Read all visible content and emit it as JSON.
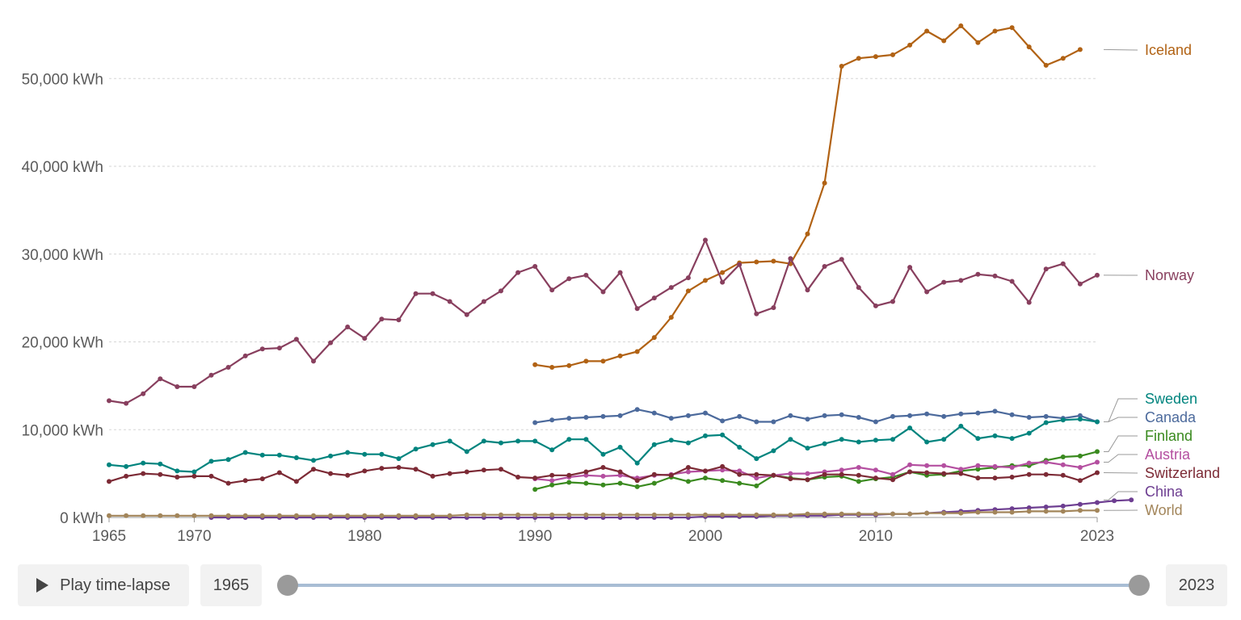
{
  "chart_data": {
    "type": "line",
    "ylim": [
      0,
      57000
    ],
    "yticks": [
      0,
      10000,
      20000,
      30000,
      40000,
      50000
    ],
    "ytick_labels": [
      "0 kWh",
      "10,000 kWh",
      "20,000 kWh",
      "30,000 kWh",
      "40,000 kWh",
      "50,000 kWh"
    ],
    "xlim": [
      1965,
      2023
    ],
    "xticks": [
      1965,
      1970,
      1980,
      1990,
      2000,
      2010,
      2023
    ],
    "xtick_labels": [
      "1965",
      "1970",
      "1980",
      "1990",
      "2000",
      "2010",
      "2023"
    ],
    "grid": true,
    "series": [
      {
        "name": "Iceland",
        "color": "#b16214",
        "start": 1990,
        "values": [
          17400,
          17100,
          17300,
          17800,
          17800,
          18400,
          18900,
          20500,
          22800,
          25800,
          27000,
          27900,
          29000,
          29100,
          29200,
          28900,
          32300,
          38100,
          51400,
          52300,
          52500,
          52700,
          53800,
          55400,
          54300,
          56000,
          54100,
          55400,
          55800,
          53600,
          51500,
          52300,
          53300
        ]
      },
      {
        "name": "Norway",
        "color": "#883f5e",
        "start": 1965,
        "values": [
          13300,
          13000,
          14100,
          15800,
          14900,
          14900,
          16200,
          17100,
          18400,
          19200,
          19300,
          20300,
          17800,
          19900,
          21700,
          20400,
          22600,
          22500,
          25500,
          25500,
          24600,
          23100,
          24600,
          25800,
          27900,
          28600,
          25900,
          27200,
          27600,
          25700,
          27900,
          23800,
          25000,
          26200,
          27300,
          31600,
          26800,
          28800,
          23200,
          23900,
          29500,
          25900,
          28600,
          29400,
          26200,
          24100,
          24600,
          28500,
          25700,
          26800,
          27000,
          27700,
          27500,
          26900,
          24500,
          28300,
          28900,
          26600,
          27600
        ]
      },
      {
        "name": "Canada",
        "color": "#4c6a9c",
        "start": 1990,
        "values": [
          10800,
          11100,
          11300,
          11400,
          11500,
          11600,
          12300,
          11900,
          11300,
          11600,
          11900,
          11000,
          11500,
          10900,
          10900,
          11600,
          11200,
          11600,
          11700,
          11400,
          10900,
          11500,
          11600,
          11800,
          11500,
          11800,
          11900,
          12100,
          11700,
          11400,
          11500,
          11300,
          11600,
          10900
        ]
      },
      {
        "name": "Sweden",
        "color": "#00847e",
        "start": 1965,
        "values": [
          6000,
          5800,
          6200,
          6100,
          5300,
          5200,
          6400,
          6600,
          7400,
          7100,
          7100,
          6800,
          6500,
          7000,
          7400,
          7200,
          7200,
          6700,
          7800,
          8300,
          8700,
          7500,
          8700,
          8500,
          8700,
          8700,
          7700,
          8900,
          8900,
          7200,
          8000,
          6200,
          8300,
          8800,
          8500,
          9300,
          9400,
          8000,
          6700,
          7600,
          8900,
          7900,
          8400,
          8900,
          8600,
          8800,
          8900,
          10200,
          8600,
          8900,
          10400,
          9000,
          9300,
          9000,
          9600,
          10800,
          11100,
          11200,
          10900
        ]
      },
      {
        "name": "Finland",
        "color": "#3a8a1f",
        "start": 1990,
        "values": [
          3200,
          3700,
          4000,
          3900,
          3700,
          3900,
          3500,
          3900,
          4600,
          4100,
          4500,
          4200,
          3900,
          3600,
          4800,
          4500,
          4300,
          4600,
          4700,
          4100,
          4400,
          4600,
          5200,
          4800,
          4900,
          5300,
          5500,
          5700,
          5900,
          5900,
          6500,
          6900,
          7000,
          7500
        ]
      },
      {
        "name": "Austria",
        "color": "#b44fa0",
        "start": 1990,
        "values": [
          4400,
          4200,
          4600,
          4800,
          4700,
          4800,
          4500,
          4800,
          4900,
          5200,
          5300,
          5400,
          5300,
          4500,
          4800,
          5000,
          5000,
          5200,
          5400,
          5700,
          5400,
          4900,
          6000,
          5900,
          5900,
          5500,
          5900,
          5800,
          5700,
          6200,
          6300,
          6000,
          5700,
          6300
        ]
      },
      {
        "name": "Switzerland",
        "color": "#7c2a35",
        "start": 1965,
        "values": [
          4100,
          4700,
          5000,
          4900,
          4600,
          4700,
          4700,
          3900,
          4200,
          4400,
          5100,
          4100,
          5500,
          5000,
          4800,
          5300,
          5600,
          5700,
          5500,
          4700,
          5000,
          5200,
          5400,
          5500,
          4600,
          4500,
          4800,
          4800,
          5200,
          5700,
          5200,
          4200,
          4900,
          4800,
          5700,
          5300,
          5800,
          4900,
          4900,
          4800,
          4400,
          4300,
          4900,
          4900,
          4800,
          4500,
          4300,
          5200,
          5100,
          5000,
          5000,
          4500,
          4500,
          4600,
          4900,
          4900,
          4800,
          4200,
          5100
        ]
      },
      {
        "name": "China",
        "color": "#6d3e91",
        "start": 1971,
        "values": [
          0,
          0,
          0,
          0,
          0,
          0,
          0,
          0,
          0,
          0,
          0,
          0,
          0,
          0,
          0,
          0,
          0,
          0,
          0,
          0,
          0,
          0,
          0,
          0,
          0,
          0,
          0,
          0,
          0,
          100,
          100,
          100,
          100,
          200,
          200,
          200,
          200,
          300,
          300,
          300,
          400,
          400,
          500,
          600,
          700,
          800,
          900,
          1000,
          1100,
          1200,
          1300,
          1500,
          1700,
          1900,
          2000
        ]
      },
      {
        "name": "World",
        "color": "#a2855a",
        "start": 1965,
        "values": [
          200,
          200,
          200,
          200,
          200,
          200,
          200,
          200,
          200,
          200,
          200,
          200,
          200,
          200,
          200,
          200,
          200,
          200,
          200,
          200,
          200,
          300,
          300,
          300,
          300,
          300,
          300,
          300,
          300,
          300,
          300,
          300,
          300,
          300,
          300,
          300,
          300,
          300,
          300,
          300,
          300,
          400,
          400,
          400,
          400,
          400,
          400,
          400,
          500,
          500,
          500,
          600,
          600,
          600,
          700,
          700,
          700,
          800,
          800
        ]
      }
    ]
  },
  "controls": {
    "play_label": "Play time-lapse",
    "start_year": "1965",
    "end_year": "2023"
  }
}
